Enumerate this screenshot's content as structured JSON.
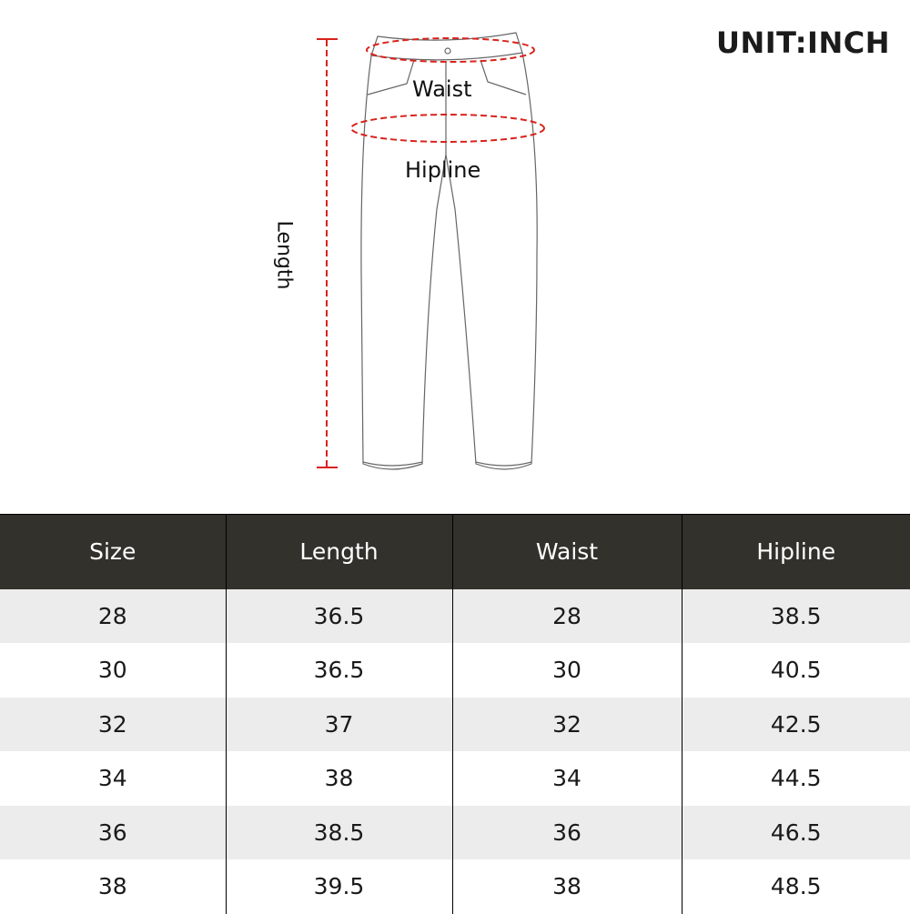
{
  "unit_label": "UNIT:INCH",
  "diagram": {
    "waist_label": "Waist",
    "hipline_label": "Hipline",
    "length_label": "Length",
    "measure_color": "#d8231c"
  },
  "table": {
    "headers": [
      "Size",
      "Length",
      "Waist",
      "Hipline"
    ],
    "rows": [
      [
        "28",
        "36.5",
        "28",
        "38.5"
      ],
      [
        "30",
        "36.5",
        "30",
        "40.5"
      ],
      [
        "32",
        "37",
        "32",
        "42.5"
      ],
      [
        "34",
        "38",
        "34",
        "44.5"
      ],
      [
        "36",
        "38.5",
        "36",
        "46.5"
      ],
      [
        "38",
        "39.5",
        "38",
        "48.5"
      ]
    ]
  }
}
